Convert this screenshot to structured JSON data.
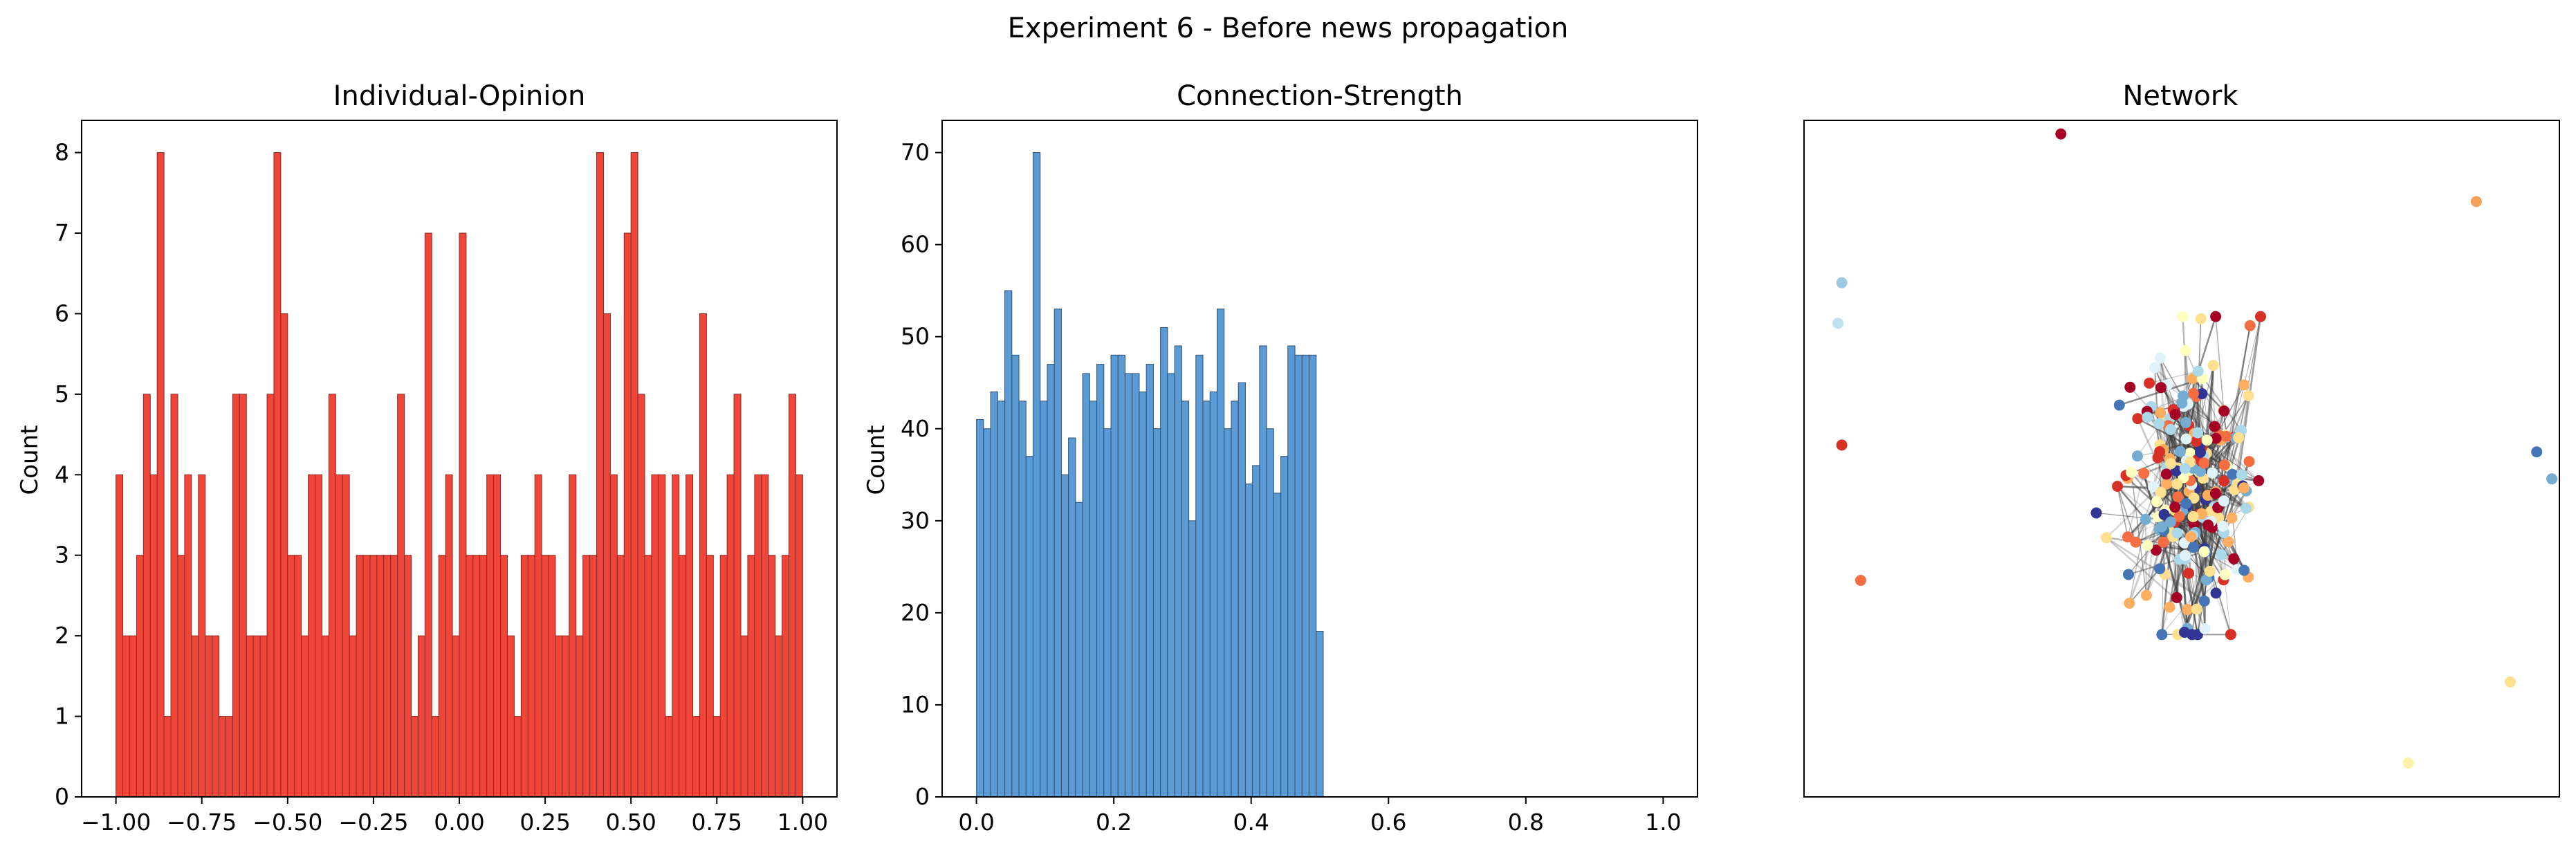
{
  "figure": {
    "title": "Experiment 6 - Before news propagation"
  },
  "chart_data": [
    {
      "type": "bar",
      "title": "Individual-Opinion",
      "xlabel": "",
      "ylabel": "Count",
      "xlim": [
        -1.1,
        1.1
      ],
      "ylim": [
        0,
        8.4
      ],
      "bin_range": [
        -1.0,
        1.0
      ],
      "xticks": [
        "−1.00",
        "−0.75",
        "−0.50",
        "−0.25",
        "0.00",
        "0.25",
        "0.50",
        "0.75",
        "1.00"
      ],
      "xtick_values": [
        -1.0,
        -0.75,
        -0.5,
        -0.25,
        0.0,
        0.25,
        0.5,
        0.75,
        1.0
      ],
      "yticks": [
        "0",
        "1",
        "2",
        "3",
        "4",
        "5",
        "6",
        "7",
        "8"
      ],
      "ytick_values": [
        0,
        1,
        2,
        3,
        4,
        5,
        6,
        7,
        8
      ],
      "color": "#f0463a",
      "edge_color": "#8a2a24",
      "values": [
        4,
        2,
        2,
        3,
        5,
        4,
        8,
        1,
        5,
        3,
        4,
        2,
        4,
        2,
        2,
        1,
        1,
        5,
        5,
        2,
        2,
        2,
        5,
        8,
        6,
        3,
        3,
        2,
        4,
        4,
        2,
        5,
        4,
        4,
        2,
        3,
        3,
        3,
        3,
        3,
        3,
        5,
        3,
        1,
        2,
        7,
        1,
        3,
        4,
        2,
        7,
        3,
        3,
        3,
        4,
        4,
        3,
        2,
        1,
        3,
        3,
        4,
        3,
        3,
        2,
        2,
        4,
        2,
        3,
        3,
        8,
        6,
        4,
        3,
        7,
        8,
        5,
        3,
        4,
        4,
        1,
        4,
        3,
        4,
        1,
        6,
        3,
        1,
        3,
        4,
        5,
        2,
        3,
        4,
        4,
        3,
        2,
        3,
        5,
        4
      ]
    },
    {
      "type": "bar",
      "title": "Connection-Strength",
      "xlabel": "",
      "ylabel": "Count",
      "xlim": [
        -0.05,
        1.05
      ],
      "ylim": [
        0,
        73.5
      ],
      "bin_range": [
        0.0,
        0.505
      ],
      "xticks": [
        "0.0",
        "0.2",
        "0.4",
        "0.6",
        "0.8",
        "1.0"
      ],
      "xtick_values": [
        0.0,
        0.2,
        0.4,
        0.6,
        0.8,
        1.0
      ],
      "yticks": [
        "0",
        "10",
        "20",
        "30",
        "40",
        "50",
        "60",
        "70"
      ],
      "ytick_values": [
        0,
        10,
        20,
        30,
        40,
        50,
        60,
        70
      ],
      "color": "#5b9bd5",
      "edge_color": "#2f4f6f",
      "values": [
        41,
        40,
        44,
        43,
        55,
        48,
        43,
        37,
        70,
        43,
        47,
        53,
        35,
        39,
        32,
        46,
        43,
        47,
        40,
        48,
        48,
        46,
        46,
        44,
        47,
        40,
        51,
        46,
        49,
        43,
        30,
        48,
        43,
        44,
        53,
        40,
        43,
        45,
        34,
        36,
        49,
        40,
        33,
        37,
        49,
        48,
        48,
        48,
        18
      ]
    },
    {
      "type": "scatter",
      "title": "Network",
      "xlabel": "",
      "ylabel": "",
      "axes": "off",
      "palette": [
        "#a50026",
        "#d73027",
        "#f46d43",
        "#fdae61",
        "#fee090",
        "#ffffbf",
        "#e0f3f8",
        "#abd9e9",
        "#74add1",
        "#4575b4",
        "#313695"
      ],
      "outliers": [
        {
          "x": 0.34,
          "y": 0.98,
          "c": "#a50026"
        },
        {
          "x": 0.89,
          "y": 0.88,
          "c": "#f4a259"
        },
        {
          "x": 0.05,
          "y": 0.76,
          "c": "#9ec9e2"
        },
        {
          "x": 0.045,
          "y": 0.7,
          "c": "#bfe0ee"
        },
        {
          "x": 0.05,
          "y": 0.52,
          "c": "#d73027"
        },
        {
          "x": 0.97,
          "y": 0.51,
          "c": "#4575b4"
        },
        {
          "x": 0.99,
          "y": 0.47,
          "c": "#74add1"
        },
        {
          "x": 0.075,
          "y": 0.32,
          "c": "#f46d43"
        },
        {
          "x": 0.935,
          "y": 0.17,
          "c": "#fee090"
        },
        {
          "x": 0.8,
          "y": 0.05,
          "c": "#fff2a8"
        }
      ]
    }
  ]
}
